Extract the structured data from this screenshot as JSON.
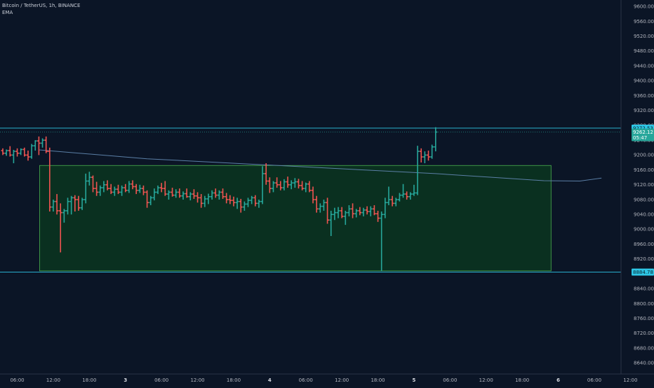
{
  "legend": {
    "symbol_line": "Bitcoin / TetherUS, 1h, BINANCE",
    "indicator": "EMA"
  },
  "colors": {
    "background": "#0b1526",
    "up": "#26a69a",
    "down": "#ef5350",
    "ema": "#5b7fa6",
    "level_line": "#2ec7e6",
    "range_fill": "#0b3520",
    "range_border": "#4caf50",
    "axis_text": "#b2b5be"
  },
  "chart_data": {
    "type": "ohlc",
    "symbol": "Bitcoin / TetherUS",
    "timeframe": "1h",
    "exchange": "BINANCE",
    "y_axis": {
      "range": [
        8618,
        9610
      ],
      "ticks": [
        "9600.00",
        "9560.00",
        "9520.00",
        "9480.00",
        "9440.00",
        "9400.00",
        "9360.00",
        "9320.00",
        "9280.00",
        "9240.00",
        "9200.00",
        "9160.00",
        "9120.00",
        "9080.00",
        "9040.00",
        "9000.00",
        "8960.00",
        "8920.00",
        "8880.00",
        "8840.00",
        "8800.00",
        "8760.00",
        "8720.00",
        "8680.00",
        "8640.00"
      ]
    },
    "x_axis": {
      "ticks": [
        {
          "label": "06:00",
          "bar": 4
        },
        {
          "label": "12:00",
          "bar": 14
        },
        {
          "label": "18:00",
          "bar": 24
        },
        {
          "label": "3",
          "bar": 34
        },
        {
          "label": "06:00",
          "bar": 44
        },
        {
          "label": "12:00",
          "bar": 54
        },
        {
          "label": "18:00",
          "bar": 64
        },
        {
          "label": "4",
          "bar": 74
        },
        {
          "label": "06:00",
          "bar": 84
        },
        {
          "label": "12:00",
          "bar": 94
        },
        {
          "label": "18:00",
          "bar": 104
        },
        {
          "label": "5",
          "bar": 114
        },
        {
          "label": "06:00",
          "bar": 124
        },
        {
          "label": "12:00",
          "bar": 134
        },
        {
          "label": "18:00",
          "bar": 144
        },
        {
          "label": "6",
          "bar": 154
        },
        {
          "label": "06:00",
          "bar": 164
        },
        {
          "label": "12:00",
          "bar": 174
        }
      ]
    },
    "price_labels": [
      {
        "id": "upper-level",
        "text": "9272.53",
        "value": 9272.53,
        "style": "level"
      },
      {
        "id": "last-price",
        "text": "9262.12",
        "value": 9262.12,
        "style": "price"
      },
      {
        "id": "countdown",
        "text": "05:47",
        "value": 9247,
        "style": "price"
      },
      {
        "id": "lower-level",
        "text": "8884.78",
        "value": 8884.78,
        "style": "level"
      }
    ],
    "horizontal_levels": [
      9272.53,
      8884.78
    ],
    "last_price": 9262.12,
    "range_box": {
      "bar_start": 10.2,
      "bar_end": 152,
      "top": 9172,
      "bottom": 8888
    },
    "ema": [
      [
        10,
        9214
      ],
      [
        40,
        9190
      ],
      [
        80,
        9170
      ],
      [
        120,
        9150
      ],
      [
        150,
        9131
      ],
      [
        160,
        9130
      ],
      [
        166,
        9138
      ]
    ],
    "bars": [
      [
        9212,
        9218,
        9200,
        9205
      ],
      [
        9205,
        9215,
        9198,
        9212
      ],
      [
        9212,
        9224,
        9196,
        9200
      ],
      [
        9200,
        9214,
        9178,
        9210
      ],
      [
        9210,
        9218,
        9196,
        9205
      ],
      [
        9205,
        9218,
        9200,
        9215
      ],
      [
        9215,
        9220,
        9196,
        9200
      ],
      [
        9200,
        9212,
        9185,
        9195
      ],
      [
        9195,
        9230,
        9190,
        9225
      ],
      [
        9225,
        9240,
        9212,
        9238
      ],
      [
        9238,
        9250,
        9200,
        9232
      ],
      [
        9232,
        9245,
        9220,
        9240
      ],
      [
        9240,
        9250,
        9205,
        9210
      ],
      [
        9210,
        9220,
        9048,
        9060
      ],
      [
        9060,
        9080,
        9048,
        9075
      ],
      [
        9075,
        9095,
        9040,
        9050
      ],
      [
        9050,
        9070,
        8938,
        9045
      ],
      [
        9045,
        9055,
        9018,
        9050
      ],
      [
        9050,
        9085,
        9040,
        9075
      ],
      [
        9075,
        9090,
        9040,
        9085
      ],
      [
        9085,
        9092,
        9048,
        9080
      ],
      [
        9080,
        9090,
        9050,
        9058
      ],
      [
        9058,
        9085,
        9052,
        9080
      ],
      [
        9080,
        9150,
        9070,
        9130
      ],
      [
        9130,
        9155,
        9118,
        9140
      ],
      [
        9140,
        9145,
        9100,
        9110
      ],
      [
        9110,
        9128,
        9090,
        9100
      ],
      [
        9100,
        9118,
        9090,
        9112
      ],
      [
        9112,
        9130,
        9100,
        9120
      ],
      [
        9120,
        9132,
        9105,
        9110
      ],
      [
        9110,
        9122,
        9095,
        9100
      ],
      [
        9100,
        9115,
        9090,
        9108
      ],
      [
        9108,
        9120,
        9095,
        9100
      ],
      [
        9100,
        9118,
        9090,
        9112
      ],
      [
        9112,
        9122,
        9100,
        9105
      ],
      [
        9105,
        9130,
        9098,
        9122
      ],
      [
        9122,
        9132,
        9108,
        9115
      ],
      [
        9115,
        9122,
        9095,
        9105
      ],
      [
        9105,
        9120,
        9098,
        9110
      ],
      [
        9110,
        9118,
        9092,
        9100
      ],
      [
        9100,
        9105,
        9058,
        9072
      ],
      [
        9072,
        9090,
        9065,
        9085
      ],
      [
        9085,
        9110,
        9078,
        9100
      ],
      [
        9100,
        9118,
        9095,
        9112
      ],
      [
        9112,
        9125,
        9100,
        9110
      ],
      [
        9110,
        9130,
        9090,
        9095
      ],
      [
        9095,
        9105,
        9080,
        9100
      ],
      [
        9100,
        9112,
        9088,
        9092
      ],
      [
        9092,
        9108,
        9085,
        9100
      ],
      [
        9100,
        9110,
        9085,
        9090
      ],
      [
        9090,
        9102,
        9080,
        9096
      ],
      [
        9096,
        9110,
        9085,
        9088
      ],
      [
        9088,
        9100,
        9078,
        9095
      ],
      [
        9095,
        9108,
        9082,
        9090
      ],
      [
        9090,
        9100,
        9072,
        9085
      ],
      [
        9085,
        9095,
        9058,
        9070
      ],
      [
        9070,
        9090,
        9060,
        9082
      ],
      [
        9082,
        9096,
        9068,
        9088
      ],
      [
        9088,
        9105,
        9080,
        9098
      ],
      [
        9098,
        9110,
        9085,
        9092
      ],
      [
        9092,
        9105,
        9080,
        9100
      ],
      [
        9100,
        9110,
        9082,
        9088
      ],
      [
        9088,
        9098,
        9070,
        9080
      ],
      [
        9080,
        9092,
        9068,
        9078
      ],
      [
        9078,
        9088,
        9062,
        9072
      ],
      [
        9072,
        9085,
        9055,
        9075
      ],
      [
        9075,
        9082,
        9045,
        9060
      ],
      [
        9060,
        9075,
        9050,
        9068
      ],
      [
        9068,
        9085,
        9060,
        9078
      ],
      [
        9078,
        9090,
        9068,
        9085
      ],
      [
        9085,
        9092,
        9062,
        9070
      ],
      [
        9070,
        9080,
        9058,
        9075
      ],
      [
        9075,
        9170,
        9068,
        9150
      ],
      [
        9150,
        9178,
        9120,
        9130
      ],
      [
        9130,
        9140,
        9098,
        9110
      ],
      [
        9110,
        9130,
        9100,
        9125
      ],
      [
        9125,
        9140,
        9112,
        9120
      ],
      [
        9120,
        9130,
        9105,
        9112
      ],
      [
        9112,
        9135,
        9105,
        9128
      ],
      [
        9128,
        9142,
        9112,
        9120
      ],
      [
        9120,
        9132,
        9108,
        9125
      ],
      [
        9125,
        9138,
        9112,
        9128
      ],
      [
        9128,
        9136,
        9110,
        9118
      ],
      [
        9118,
        9130,
        9105,
        9110
      ],
      [
        9110,
        9126,
        9100,
        9122
      ],
      [
        9122,
        9130,
        9100,
        9105
      ],
      [
        9105,
        9115,
        9070,
        9080
      ],
      [
        9080,
        9090,
        9045,
        9055
      ],
      [
        9055,
        9070,
        9045,
        9062
      ],
      [
        9062,
        9080,
        9050,
        9072
      ],
      [
        9072,
        9085,
        9015,
        9025
      ],
      [
        9025,
        9050,
        8982,
        9040
      ],
      [
        9040,
        9058,
        9025,
        9045
      ],
      [
        9045,
        9060,
        9030,
        9050
      ],
      [
        9050,
        9060,
        9030,
        9035
      ],
      [
        9035,
        9050,
        9012,
        9045
      ],
      [
        9045,
        9065,
        9035,
        9055
      ],
      [
        9055,
        9070,
        9030,
        9042
      ],
      [
        9042,
        9055,
        9032,
        9050
      ],
      [
        9050,
        9060,
        9038,
        9045
      ],
      [
        9045,
        9058,
        9035,
        9052
      ],
      [
        9052,
        9062,
        9040,
        9048
      ],
      [
        9048,
        9062,
        9035,
        9055
      ],
      [
        9055,
        9065,
        9038,
        9042
      ],
      [
        9042,
        9050,
        9020,
        9030
      ],
      [
        9030,
        9048,
        8888,
        9040
      ],
      [
        9040,
        9085,
        9030,
        9072
      ],
      [
        9072,
        9115,
        9065,
        9080
      ],
      [
        9080,
        9090,
        9062,
        9070
      ],
      [
        9070,
        9085,
        9062,
        9080
      ],
      [
        9080,
        9098,
        9075,
        9092
      ],
      [
        9092,
        9122,
        9085,
        9095
      ],
      [
        9095,
        9102,
        9080,
        9088
      ],
      [
        9088,
        9100,
        9080,
        9095
      ],
      [
        9095,
        9120,
        9090,
        9098
      ],
      [
        9098,
        9225,
        9092,
        9210
      ],
      [
        9210,
        9218,
        9180,
        9195
      ],
      [
        9195,
        9210,
        9178,
        9200
      ],
      [
        9200,
        9212,
        9185,
        9195
      ],
      [
        9195,
        9228,
        9190,
        9222
      ],
      [
        9222,
        9275,
        9210,
        9262
      ]
    ]
  }
}
